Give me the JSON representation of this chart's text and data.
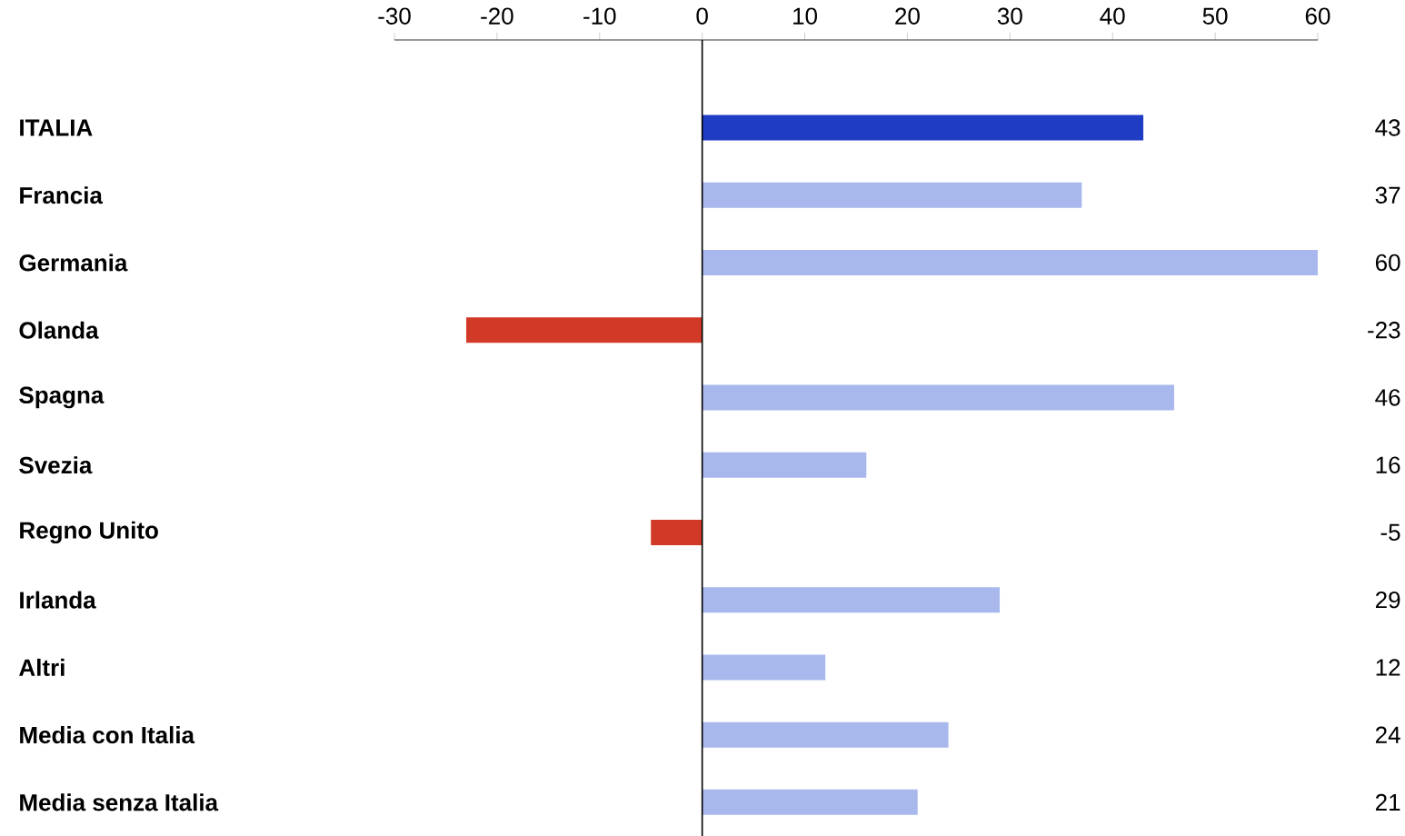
{
  "chart_data": {
    "type": "bar",
    "orientation": "horizontal",
    "categories": [
      "ITALIA",
      "Francia",
      "Germania",
      "Olanda",
      "Spagna",
      "Svezia",
      "Regno Unito",
      "Irlanda",
      "Altri",
      "Media con Italia",
      "Media senza Italia"
    ],
    "values": [
      43,
      37,
      60,
      -23,
      46,
      16,
      -5,
      29,
      12,
      24,
      21
    ],
    "colors": [
      "#1f3cc4",
      "#a8b8ec",
      "#a8b8ec",
      "#d23a28",
      "#a8b8ec",
      "#a8b8ec",
      "#d23a28",
      "#a8b8ec",
      "#a8b8ec",
      "#a8b8ec",
      "#a8b8ec"
    ],
    "xlim": [
      -30,
      60
    ],
    "xticks": [
      -30,
      -20,
      -10,
      0,
      10,
      20,
      30,
      40,
      50,
      60
    ],
    "ref_lines": [
      {
        "axis": "x",
        "value": 0,
        "color": "#000000"
      }
    ],
    "data_labels": true
  }
}
